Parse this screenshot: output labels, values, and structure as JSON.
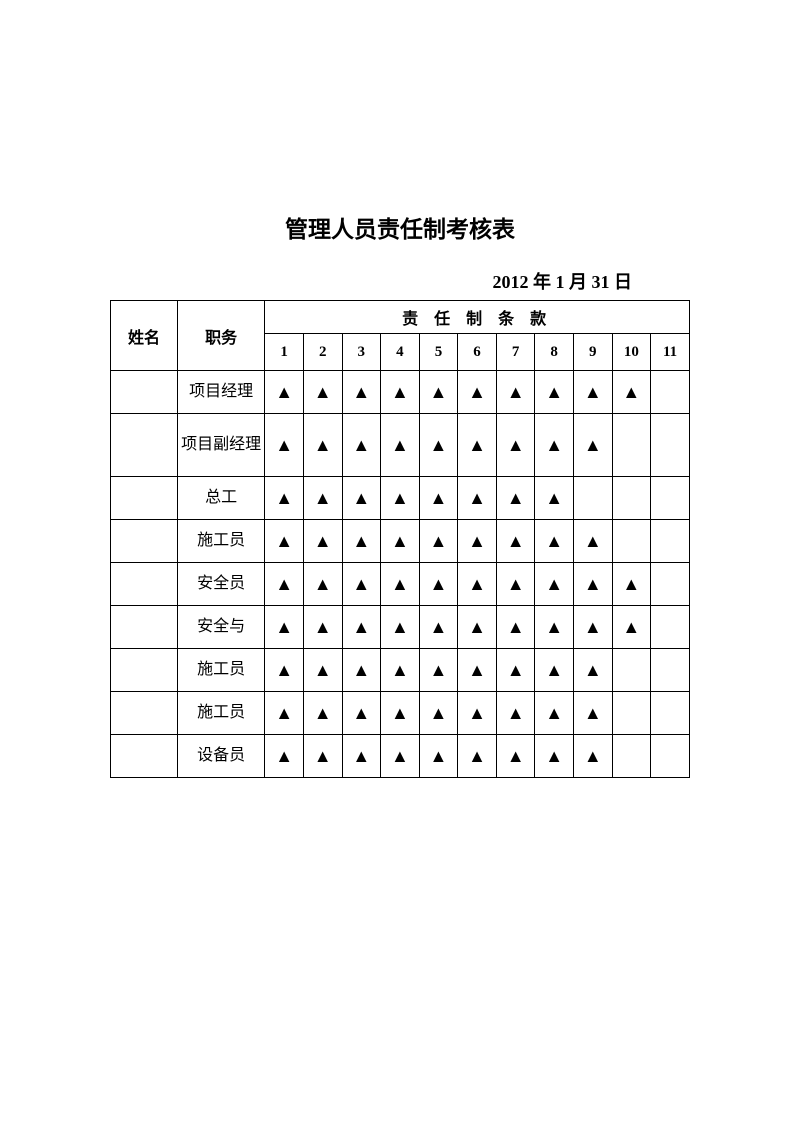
{
  "title": "管理人员责任制考核表",
  "date": "2012 年 1 月 31 日",
  "headers": {
    "name": "姓名",
    "role": "职务",
    "group": "责 任 制 条 款",
    "nums": [
      "1",
      "2",
      "3",
      "4",
      "5",
      "6",
      "7",
      "8",
      "9",
      "10",
      "11"
    ]
  },
  "mark": "▲",
  "rows": [
    {
      "name": "",
      "role": "项目经理",
      "marks": [
        1,
        1,
        1,
        1,
        1,
        1,
        1,
        1,
        1,
        1,
        0
      ],
      "tall": false
    },
    {
      "name": "",
      "role": "项目副经理",
      "marks": [
        1,
        1,
        1,
        1,
        1,
        1,
        1,
        1,
        1,
        0,
        0
      ],
      "tall": true
    },
    {
      "name": "",
      "role": "总工",
      "marks": [
        1,
        1,
        1,
        1,
        1,
        1,
        1,
        1,
        0,
        0,
        0
      ],
      "tall": false
    },
    {
      "name": "",
      "role": "施工员",
      "marks": [
        1,
        1,
        1,
        1,
        1,
        1,
        1,
        1,
        1,
        0,
        0
      ],
      "tall": false
    },
    {
      "name": "",
      "role": "安全员",
      "marks": [
        1,
        1,
        1,
        1,
        1,
        1,
        1,
        1,
        1,
        1,
        0
      ],
      "tall": false
    },
    {
      "name": "",
      "role": "安全与",
      "marks": [
        1,
        1,
        1,
        1,
        1,
        1,
        1,
        1,
        1,
        1,
        0
      ],
      "tall": false
    },
    {
      "name": "",
      "role": "施工员",
      "marks": [
        1,
        1,
        1,
        1,
        1,
        1,
        1,
        1,
        1,
        0,
        0
      ],
      "tall": false
    },
    {
      "name": "",
      "role": "施工员",
      "marks": [
        1,
        1,
        1,
        1,
        1,
        1,
        1,
        1,
        1,
        0,
        0
      ],
      "tall": false
    },
    {
      "name": "",
      "role": "设备员",
      "marks": [
        1,
        1,
        1,
        1,
        1,
        1,
        1,
        1,
        1,
        0,
        0
      ],
      "tall": false
    }
  ]
}
